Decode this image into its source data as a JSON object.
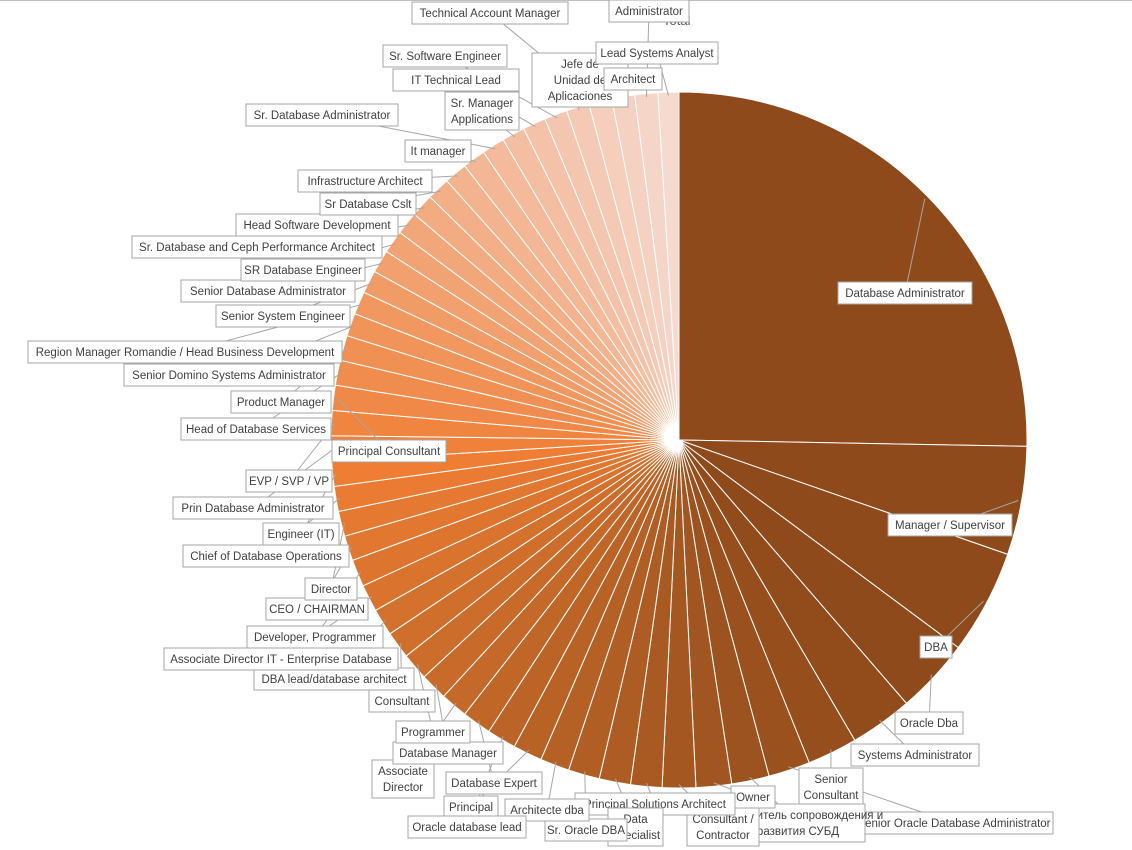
{
  "chart_data": {
    "type": "pie",
    "title": "Total",
    "start": "12 o'clock",
    "direction": "clockwise",
    "legend": "none (category labels with leader lines)",
    "colors": {
      "largest": "#8e4a1b",
      "mid": "#cf6f2c",
      "peak": "#ef7d33",
      "light": "#f6d9cf"
    },
    "slices": [
      {
        "label": "Database Administrator",
        "value": 26.1
      },
      {
        "label": "Manager / Supervisor",
        "value": 5.2
      },
      {
        "label": "DBA",
        "value": 5.0
      },
      {
        "label": "Oracle Dba",
        "value": 3.6
      },
      {
        "label": "Systems Administrator",
        "value": 3.0
      },
      {
        "label": "Senior Consultant",
        "value": 2.4
      },
      {
        "label": "Senior Oracle Database Administrator",
        "value": 2.0
      },
      {
        "label": "Руководитель сопровождения и развития СУБД",
        "value": 1.8
      },
      {
        "label": "Owner",
        "value": 1.7
      },
      {
        "label": "Consultant / Contractor",
        "value": 1.6
      },
      {
        "label": "Principal Solutions Architect",
        "value": 1.5
      },
      {
        "label": "Data Specialist",
        "value": 1.5
      },
      {
        "label": "Sr. Oracle DBA",
        "value": 1.5
      },
      {
        "label": "Architecte dba",
        "value": 1.4
      },
      {
        "label": "Principal",
        "value": 1.4
      },
      {
        "label": "Oracle database lead",
        "value": 1.4
      },
      {
        "label": "Database Expert",
        "value": 1.4
      },
      {
        "label": "Associate Director",
        "value": 1.3
      },
      {
        "label": "Database Manager",
        "value": 1.3
      },
      {
        "label": "Programmer",
        "value": 1.3
      },
      {
        "label": "Consultant",
        "value": 1.3
      },
      {
        "label": "DBA lead/database architect",
        "value": 1.3
      },
      {
        "label": "Associate Director IT - Enterprise Database",
        "value": 1.3
      },
      {
        "label": "Developer, Programmer",
        "value": 1.3
      },
      {
        "label": "CEO / CHAIRMAN",
        "value": 1.2
      },
      {
        "label": "Director",
        "value": 1.2
      },
      {
        "label": "Chief of Database Operations",
        "value": 1.2
      },
      {
        "label": "Engineer (IT)",
        "value": 1.2
      },
      {
        "label": "Prin Database Administrator",
        "value": 1.2
      },
      {
        "label": "EVP / SVP / VP",
        "value": 1.2
      },
      {
        "label": "Principal Consultant",
        "value": 1.2
      },
      {
        "label": "Head of Database Services",
        "value": 1.2
      },
      {
        "label": "Product Manager",
        "value": 1.2
      },
      {
        "label": "Senior Domino Systems Administrator",
        "value": 1.1
      },
      {
        "label": "Region Manager Romandie / Head Business Development",
        "value": 1.1
      },
      {
        "label": "Senior System Engineer",
        "value": 1.1
      },
      {
        "label": "Senior Database Administrator",
        "value": 1.1
      },
      {
        "label": "SR Database Engineer",
        "value": 1.1
      },
      {
        "label": "Sr. Database and Ceph Performance Architect",
        "value": 1.1
      },
      {
        "label": "Head Software Development",
        "value": 1.1
      },
      {
        "label": "Sr Database Cslt",
        "value": 1.1
      },
      {
        "label": "Infrastructure Architect",
        "value": 1.1
      },
      {
        "label": "It manager",
        "value": 1.1
      },
      {
        "label": "Sr. Database Administrator",
        "value": 1.1
      },
      {
        "label": "Sr. Manager Applications",
        "value": 1.1
      },
      {
        "label": "IT Technical Lead",
        "value": 1.1
      },
      {
        "label": "Sr. Software Engineer",
        "value": 1.1
      },
      {
        "label": "Jefe de Unidad de Aplicaciones",
        "value": 1.1
      },
      {
        "label": "Technical Account Manager",
        "value": 1.1
      },
      {
        "label": "Architect",
        "value": 1.1
      },
      {
        "label": "Administrator",
        "value": 1.1
      },
      {
        "label": "Lead Systems Analyst",
        "value": 1.0
      }
    ]
  }
}
